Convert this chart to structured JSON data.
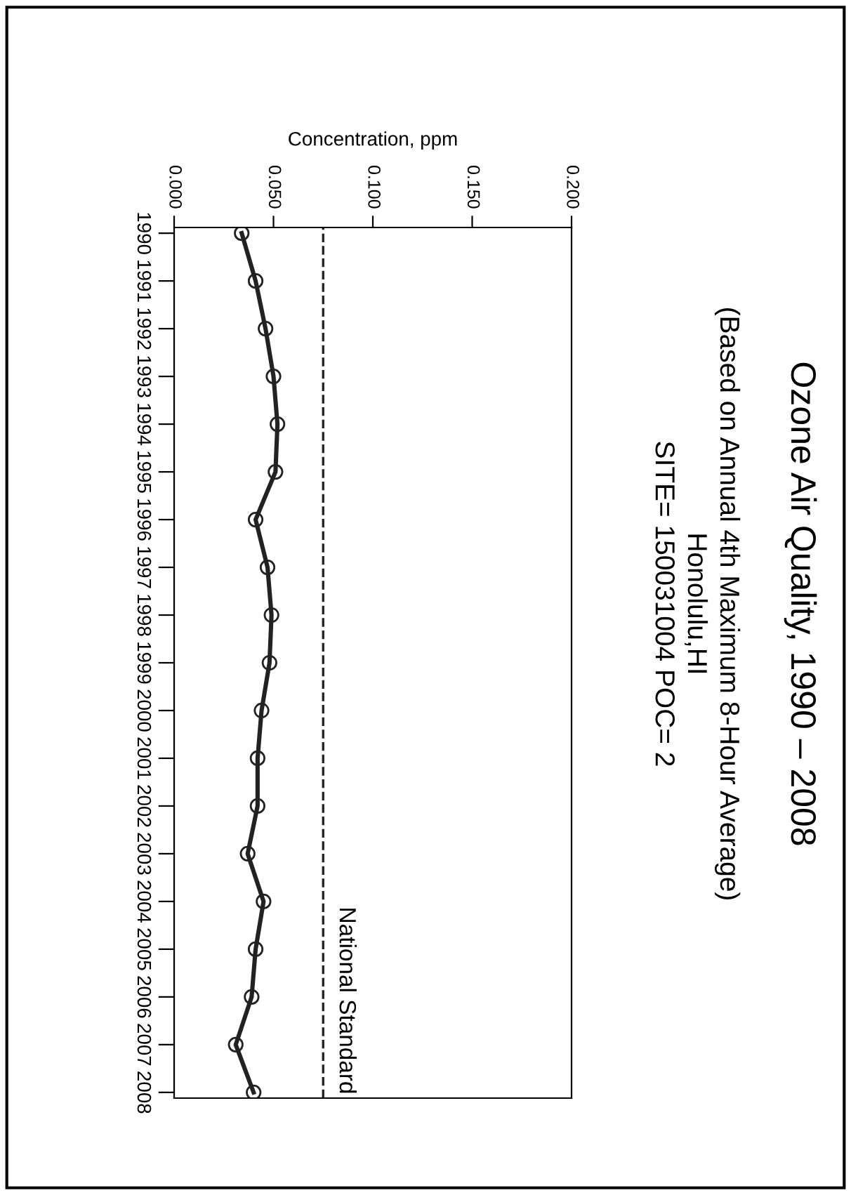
{
  "chart_data": {
    "type": "line",
    "orientation": "horizontal",
    "title": "Ozone Air Quality, 1990 – 2008",
    "subtitle": "(Based on Annual 4th Maximum 8-Hour Average)\nHonolulu,HI\nSITE= 150031004 POC= 2",
    "xlabel": "Concentration, ppm",
    "categories": [
      "1990",
      "1991",
      "1992",
      "1993",
      "1994",
      "1995",
      "1996",
      "1997",
      "1998",
      "1999",
      "2000",
      "2001",
      "2002",
      "2003",
      "2004",
      "2005",
      "2006",
      "2007",
      "2008"
    ],
    "series": [
      {
        "color": "#222222",
        "values": [
          0.034,
          0.041,
          0.046,
          0.05,
          0.052,
          0.051,
          0.041,
          0.047,
          0.049,
          0.048,
          0.044,
          0.042,
          0.042,
          0.037,
          0.045,
          0.041,
          0.039,
          0.031,
          0.04
        ]
      }
    ],
    "xlim": [
      0,
      0.2
    ],
    "xticks": [
      {
        "value": 0,
        "label": "0.000"
      },
      {
        "value": 0.05,
        "label": "0.050"
      },
      {
        "value": 0.1,
        "label": "0.100"
      },
      {
        "value": 0.15,
        "label": "0.150"
      },
      {
        "value": 0.2,
        "label": "0.200"
      }
    ],
    "ref_lines": [
      {
        "axis": "x",
        "value": 0.075,
        "label": "National Standard",
        "line_style": "dashed",
        "color": "#222222"
      }
    ],
    "marker": "circle",
    "line_style": "solid",
    "grid": false,
    "legend": false
  }
}
